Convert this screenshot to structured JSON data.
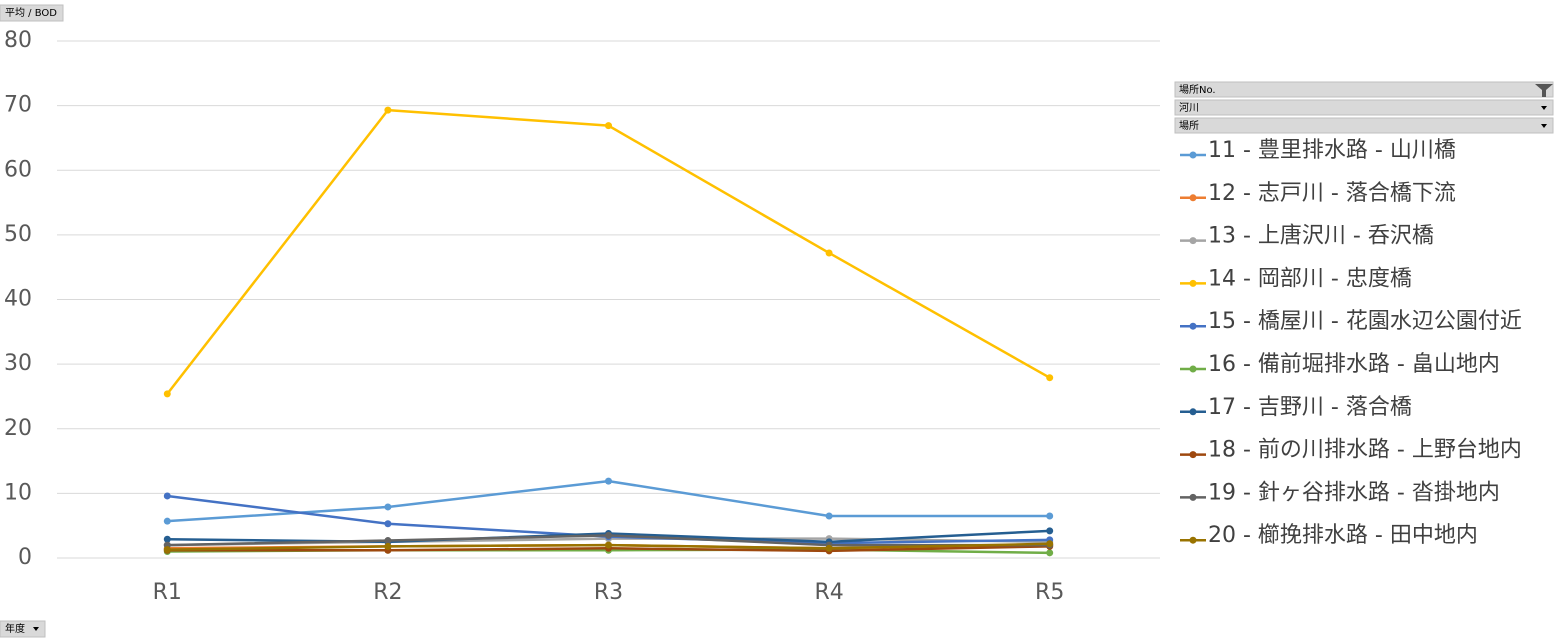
{
  "chart_data": {
    "type": "line",
    "categories": [
      "R1",
      "R2",
      "R3",
      "R4",
      "R5"
    ],
    "series": [
      {
        "name": "11 - 豊里排水路 - 山川橋",
        "color": "#5b9bd5",
        "values": [
          5.7,
          7.9,
          11.9,
          6.5,
          6.5
        ]
      },
      {
        "name": "12 - 志戸川 - 落合橋下流",
        "color": "#ed7d31",
        "values": [
          1.5,
          1.8,
          2.0,
          1.5,
          2.0
        ]
      },
      {
        "name": "13 - 上唐沢川 - 呑沢橋",
        "color": "#a5a5a5",
        "values": [
          2.0,
          2.5,
          3.0,
          3.0,
          2.5
        ]
      },
      {
        "name": "14 - 岡部川 - 忠度橋",
        "color": "#ffc000",
        "values": [
          25.4,
          69.3,
          66.9,
          47.2,
          27.9
        ]
      },
      {
        "name": "15 - 橋屋川 - 花園水辺公園付近",
        "color": "#4472c4",
        "values": [
          9.6,
          5.3,
          3.3,
          2.3,
          2.8
        ]
      },
      {
        "name": "16 - 備前堀排水路 - 畠山地内",
        "color": "#70ad47",
        "values": [
          1.0,
          1.2,
          1.2,
          1.3,
          0.8
        ]
      },
      {
        "name": "17 - 吉野川 - 落合橋",
        "color": "#255e91",
        "values": [
          2.9,
          2.5,
          3.8,
          2.5,
          4.2
        ]
      },
      {
        "name": "18 - 前の川排水路 - 上野台地内",
        "color": "#9e480e",
        "values": [
          1.2,
          1.2,
          1.5,
          1.1,
          1.8
        ]
      },
      {
        "name": "19 - 針ヶ谷排水路 - 沓掛地内",
        "color": "#636363",
        "values": [
          2.0,
          2.7,
          3.5,
          2.0,
          2.0
        ]
      },
      {
        "name": "20 - 櫛挽排水路 - 田中地内",
        "color": "#997300",
        "values": [
          1.3,
          1.8,
          2.0,
          1.5,
          2.2
        ]
      }
    ],
    "ylim": [
      0,
      80
    ],
    "yticks": [
      0,
      10,
      20,
      30,
      40,
      50,
      60,
      70,
      80
    ],
    "grid": true,
    "legend": "right"
  },
  "field_buttons": {
    "value": "平均 / BOD",
    "axis": "年度",
    "legend": [
      "場所No.",
      "河川",
      "場所"
    ]
  }
}
